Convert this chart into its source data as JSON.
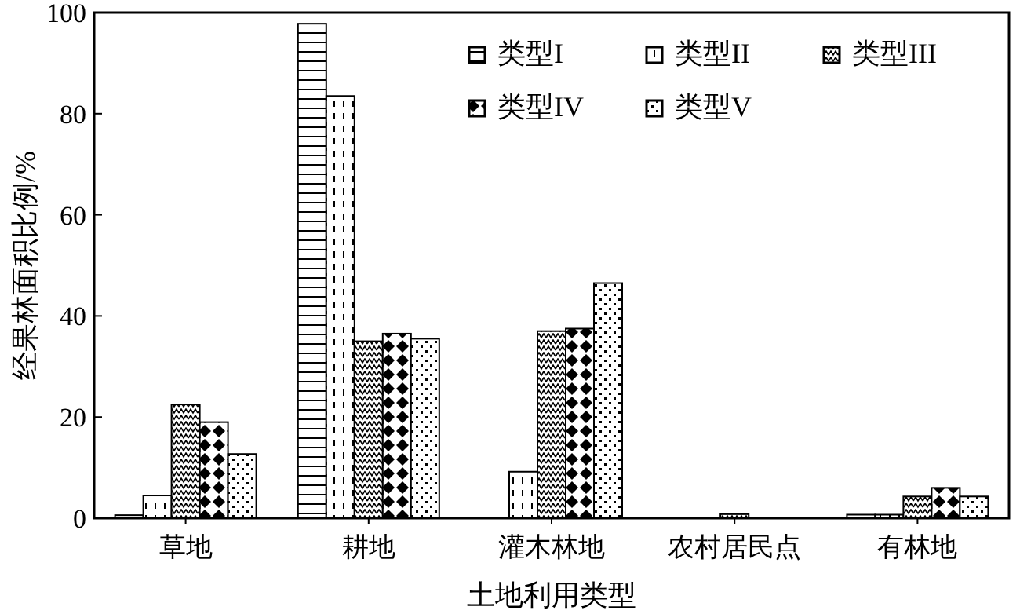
{
  "chart_data": {
    "type": "bar",
    "xlabel": "土地利用类型",
    "ylabel": "经果林面积比例/%",
    "categories": [
      "草地",
      "耕地",
      "灌木林地",
      "农村居民点",
      "有林地"
    ],
    "series": [
      {
        "name": "类型I",
        "color": "#000000",
        "values": [
          0.6,
          97.8,
          null,
          null,
          0.7
        ]
      },
      {
        "name": "类型II",
        "color": "#000000",
        "values": [
          4.5,
          83.5,
          9.2,
          null,
          0.7
        ]
      },
      {
        "name": "类型III",
        "color": "#000000",
        "values": [
          22.5,
          35,
          37,
          0.8,
          4.3
        ]
      },
      {
        "name": "类型IV",
        "color": "#000000",
        "values": [
          19,
          36.5,
          37.5,
          null,
          6
        ]
      },
      {
        "name": "类型V",
        "color": "#000000",
        "values": [
          12.7,
          35.5,
          46.5,
          null,
          4.3
        ]
      }
    ],
    "ylim": [
      0,
      100
    ],
    "yticks": [
      0,
      20,
      40,
      60,
      80,
      100
    ],
    "grid": false,
    "legend": "top right"
  }
}
